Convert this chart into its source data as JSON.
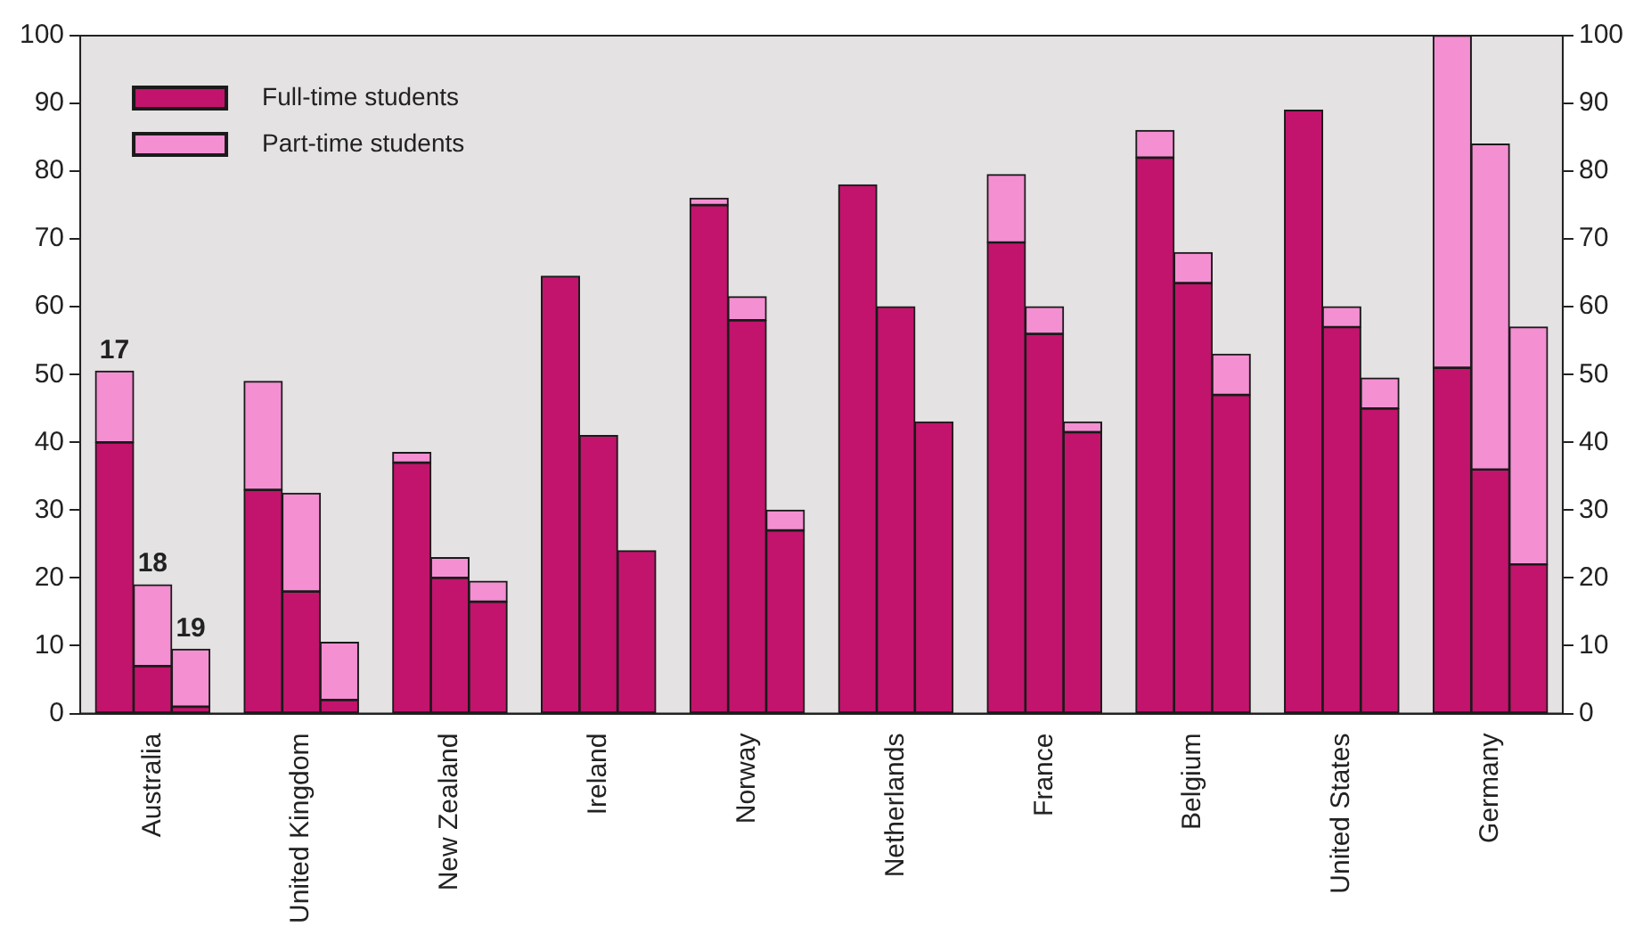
{
  "chart_data": {
    "type": "bar",
    "stacked": true,
    "categories": [
      null,
      "Australia",
      null,
      null,
      "United Kingdom",
      null,
      null,
      "New Zealand",
      null,
      null,
      "Ireland",
      null,
      null,
      "Norway",
      null,
      null,
      "Netherlands",
      null,
      null,
      "France",
      null,
      null,
      "Belgium",
      null,
      null,
      "United States",
      null,
      null,
      "Germany",
      null
    ],
    "series": [
      {
        "name": "Full-time students",
        "color": "#c2146c",
        "values": [
          40,
          7,
          1,
          33,
          18,
          2,
          37,
          20,
          16.5,
          64.5,
          41,
          24,
          75,
          58,
          27,
          78,
          60,
          43,
          69.5,
          56,
          41.5,
          82,
          63.5,
          47,
          89,
          57,
          45,
          51,
          36,
          22
        ]
      },
      {
        "name": "Part-time students",
        "color": "#f48fd2",
        "values": [
          10.5,
          12,
          8.5,
          16,
          14.5,
          8.5,
          1.5,
          3,
          3,
          0,
          0,
          0,
          1,
          3.5,
          3,
          0,
          0,
          0,
          10,
          4,
          1.5,
          4,
          4.5,
          6,
          0,
          3,
          4.5,
          49,
          48,
          35
        ]
      }
    ],
    "ylim": [
      0,
      100
    ],
    "yticks": [
      0,
      10,
      20,
      30,
      40,
      50,
      60,
      70,
      80,
      90,
      100
    ],
    "y2lim": [
      0,
      100
    ],
    "y2ticks": [
      0,
      10,
      20,
      30,
      40,
      50,
      60,
      70,
      80,
      90,
      100
    ],
    "annotations": [
      "17",
      "18",
      "19"
    ],
    "legend": "top left",
    "grid": false
  }
}
